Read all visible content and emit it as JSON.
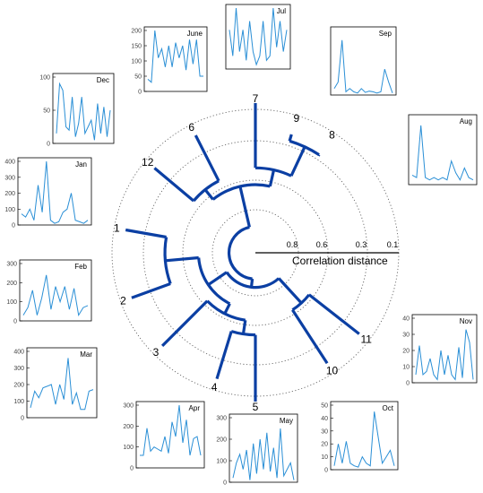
{
  "chart_data": [
    {
      "type": "dendrogram-polar",
      "xlabel": "Correlation distance",
      "radial_ticks": [
        0.8,
        0.6,
        0.3,
        0.1
      ],
      "leaves": [
        "7",
        "9",
        "8",
        "11",
        "10",
        "5",
        "4",
        "3",
        "2",
        "1",
        "12",
        "6"
      ],
      "leaf_angles_deg": [
        90,
        73,
        57,
        -38,
        -57,
        -90,
        -107,
        -135,
        -160,
        170,
        140,
        117
      ]
    },
    {
      "type": "line",
      "title": "Jan",
      "ylim": [
        0,
        400
      ],
      "yticks": [
        0,
        100,
        200,
        300,
        400
      ],
      "values": [
        70,
        50,
        100,
        30,
        250,
        80,
        400,
        30,
        10,
        20,
        80,
        100,
        200,
        30,
        20,
        10,
        30
      ]
    },
    {
      "type": "line",
      "title": "Feb",
      "ylim": [
        0,
        300
      ],
      "yticks": [
        0,
        100,
        200,
        300
      ],
      "values": [
        30,
        70,
        160,
        30,
        120,
        240,
        60,
        180,
        100,
        180,
        60,
        170,
        30,
        70,
        80
      ]
    },
    {
      "type": "line",
      "title": "Mar",
      "ylim": [
        0,
        400
      ],
      "yticks": [
        0,
        100,
        200,
        300,
        400
      ],
      "values": [
        60,
        160,
        120,
        180,
        190,
        200,
        80,
        200,
        110,
        360,
        80,
        150,
        50,
        50,
        160,
        170
      ]
    },
    {
      "type": "line",
      "title": "Apr",
      "ylim": [
        0,
        300
      ],
      "yticks": [
        0,
        100,
        200,
        300
      ],
      "values": [
        60,
        60,
        190,
        80,
        100,
        90,
        80,
        150,
        70,
        220,
        150,
        300,
        120,
        230,
        60,
        140,
        150,
        60
      ]
    },
    {
      "type": "line",
      "title": "May",
      "ylim": [
        0,
        300
      ],
      "yticks": [
        0,
        100,
        200,
        300
      ],
      "values": [
        20,
        90,
        130,
        60,
        150,
        10,
        180,
        40,
        200,
        60,
        230,
        50,
        160,
        20,
        250,
        30,
        60,
        90,
        10
      ]
    },
    {
      "type": "line",
      "title": "June",
      "ylim": [
        0,
        200
      ],
      "yticks": [
        0,
        50,
        100,
        150,
        200
      ],
      "values": [
        40,
        30,
        200,
        110,
        140,
        80,
        150,
        80,
        160,
        110,
        150,
        70,
        170,
        90,
        170,
        50,
        50
      ]
    },
    {
      "type": "line",
      "title": "Jul",
      "ylim": [
        0,
        140
      ],
      "yticks": [],
      "values": [
        90,
        30,
        140,
        40,
        90,
        20,
        110,
        40,
        10,
        30,
        110,
        20,
        30,
        140,
        50,
        110,
        40,
        90
      ]
    },
    {
      "type": "line",
      "title": "Sep",
      "ylim": [
        0,
        100
      ],
      "yticks": [],
      "values": [
        10,
        20,
        85,
        5,
        10,
        5,
        3,
        10,
        4,
        6,
        5,
        3,
        5,
        40,
        20,
        3
      ]
    },
    {
      "type": "line",
      "title": "Aug",
      "ylim": [
        0,
        140
      ],
      "yticks": [],
      "values": [
        20,
        15,
        125,
        15,
        10,
        15,
        10,
        15,
        10,
        50,
        25,
        10,
        35,
        15,
        10
      ]
    },
    {
      "type": "line",
      "title": "Nov",
      "ylim": [
        0,
        40
      ],
      "yticks": [
        0,
        10,
        20,
        30,
        40
      ],
      "values": [
        5,
        23,
        5,
        7,
        15,
        5,
        2,
        20,
        5,
        17,
        5,
        2,
        22,
        3,
        33,
        25,
        2
      ]
    },
    {
      "type": "line",
      "title": "Oct",
      "ylim": [
        0,
        50
      ],
      "yticks": [
        0,
        10,
        20,
        30,
        40,
        50
      ],
      "values": [
        3,
        20,
        5,
        22,
        5,
        3,
        2,
        10,
        5,
        3,
        45,
        25,
        5,
        10,
        15,
        3
      ]
    },
    {
      "type": "line",
      "title": "Dec",
      "ylim": [
        0,
        100
      ],
      "yticks": [
        0,
        50,
        100
      ],
      "values": [
        15,
        90,
        80,
        25,
        20,
        70,
        10,
        30,
        70,
        15,
        25,
        35,
        5,
        60,
        15,
        55,
        10,
        50
      ]
    }
  ]
}
